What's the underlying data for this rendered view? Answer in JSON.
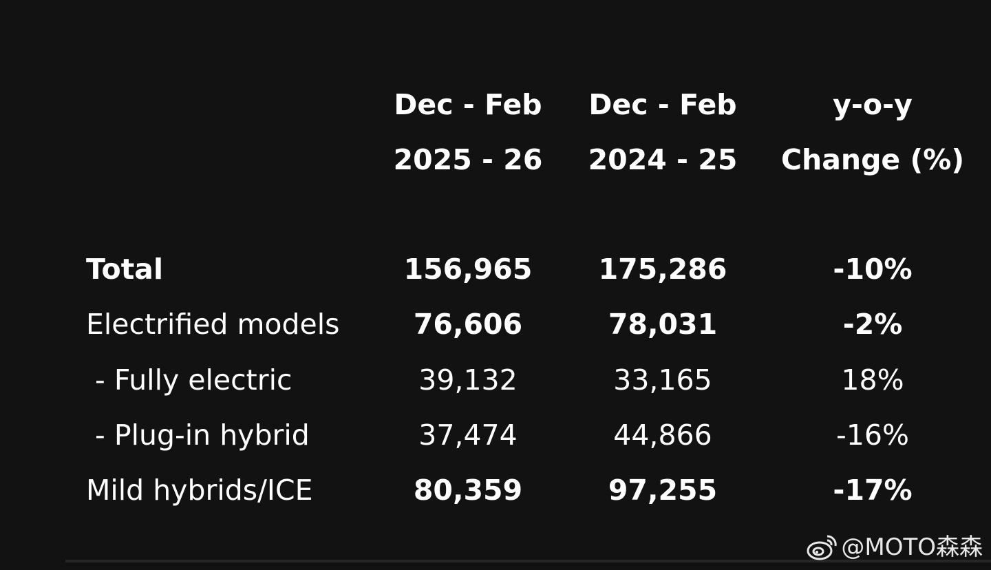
{
  "table": {
    "header": [
      [
        "Dec - Feb",
        "2025 - 26"
      ],
      [
        "Dec - Feb",
        "2024 - 25"
      ],
      [
        "y-o-y",
        "Change (%)"
      ]
    ],
    "rows": [
      [
        "Total",
        "156,965",
        "175,286",
        "-10%"
      ],
      [
        "Electrified models",
        "76,606",
        "78,031",
        "-2%"
      ],
      [
        " - Fully electric",
        "39,132",
        "33,165",
        "18%"
      ],
      [
        " - Plug-in hybrid",
        "37,474",
        "44,866",
        "-16%"
      ],
      [
        "Mild hybrids/ICE",
        "80,359",
        "97,255",
        "-17%"
      ]
    ]
  },
  "watermark": "@MOTO森森"
}
